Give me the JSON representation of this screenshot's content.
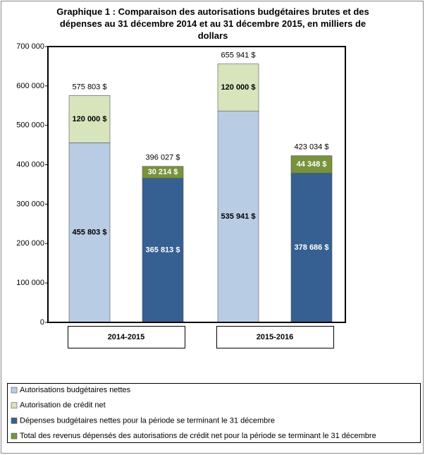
{
  "chart_data": {
    "type": "stacked-bar",
    "title": "Graphique 1 : Comparaison des autorisations budgétaires brutes et des dépenses au 31 décembre 2014 et au 31 décembre 2015, en milliers de dollars",
    "categories": [
      "2014-2015",
      "2015-2016"
    ],
    "ylim": [
      0,
      700000
    ],
    "yticks": [
      {
        "value": 0,
        "label": "0"
      },
      {
        "value": 100000,
        "label": "100 000"
      },
      {
        "value": 200000,
        "label": "200 000"
      },
      {
        "value": 300000,
        "label": "300 000"
      },
      {
        "value": 400000,
        "label": "400 000"
      },
      {
        "value": 500000,
        "label": "500 000"
      },
      {
        "value": 600000,
        "label": "600 000"
      },
      {
        "value": 700000,
        "label": "700 000"
      }
    ],
    "series": [
      {
        "name": "Autorisations budgétaires nettes",
        "color": "#b8cce4",
        "label_color": "#000000",
        "stack": 0,
        "values": [
          455803,
          535941
        ],
        "value_labels": [
          "455 803 $",
          "535 941 $"
        ]
      },
      {
        "name": "Autorisation de crédit net",
        "color": "#d7e4bc",
        "label_color": "#000000",
        "stack": 0,
        "values": [
          120000,
          120000
        ],
        "value_labels": [
          "120 000 $",
          "120 000 $"
        ]
      },
      {
        "name": "Dépenses budgétaires nettes pour la période se terminant le 31 décembre",
        "color": "#366092",
        "label_color": "#ffffff",
        "stack": 1,
        "values": [
          365813,
          378686
        ],
        "value_labels": [
          "365 813 $",
          "378 686 $"
        ]
      },
      {
        "name": "Total des revenus dépensés des autorisations de crédit net pour la période se terminant le 31 décembre",
        "color": "#77933c",
        "label_color": "#ffffff",
        "stack": 1,
        "values": [
          30214,
          44348
        ],
        "value_labels": [
          "30 214 $",
          "44 348 $"
        ]
      }
    ],
    "totals": [
      {
        "stack": 0,
        "values": [
          575803,
          655941
        ],
        "value_labels": [
          "575 803 $",
          "655 941 $"
        ]
      },
      {
        "stack": 1,
        "values": [
          396027,
          423034
        ],
        "value_labels": [
          "396 027 $",
          "423 034 $"
        ]
      }
    ]
  }
}
